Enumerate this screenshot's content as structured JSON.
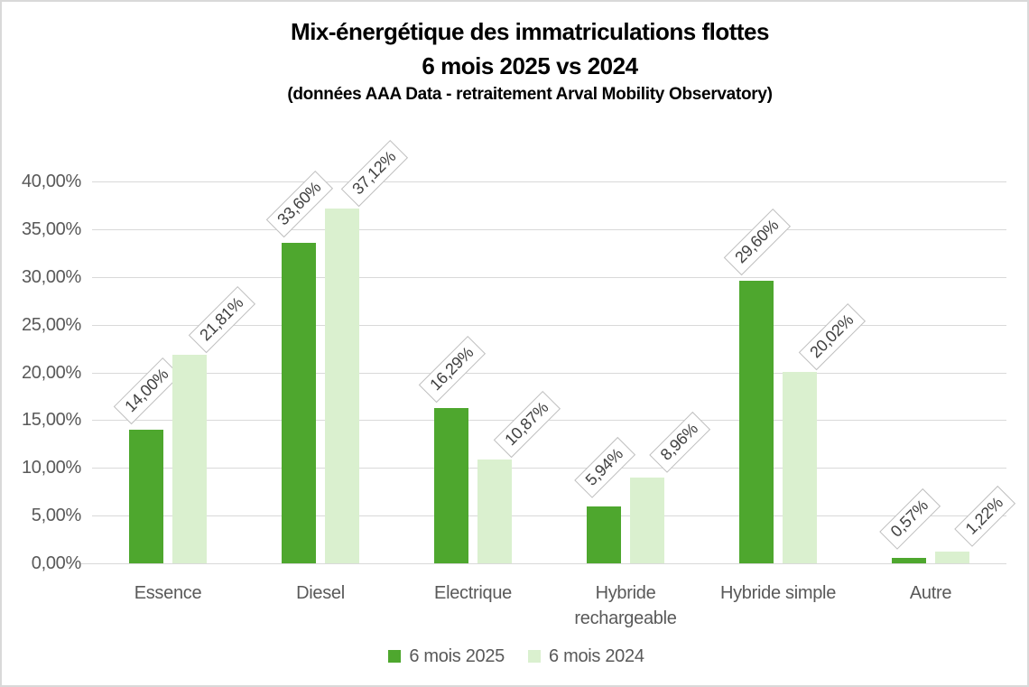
{
  "title": {
    "line1": "Mix-énergétique des immatriculations flottes",
    "line2": "6 mois 2025 vs 2024",
    "subtitle": "(données AAA Data - retraitement Arval Mobility Observatory)"
  },
  "chart_data": {
    "type": "bar",
    "title": "Mix-énergétique des immatriculations flottes 6 mois 2025 vs 2024",
    "subtitle": "(données AAA Data - retraitement Arval Mobility Observatory)",
    "categories": [
      "Essence",
      "Diesel",
      "Electrique",
      "Hybride rechargeable",
      "Hybride simple",
      "Autre"
    ],
    "series": [
      {
        "name": "6 mois 2025",
        "color": "#4EA72E",
        "values": [
          14.0,
          33.6,
          16.29,
          5.94,
          29.6,
          0.57
        ],
        "value_labels": [
          "14,00%",
          "33,60%",
          "16,29%",
          "5,94%",
          "29,60%",
          "0,57%"
        ]
      },
      {
        "name": "6 mois 2024",
        "color": "#DAF0CF",
        "values": [
          21.81,
          37.12,
          10.87,
          8.96,
          20.02,
          1.22
        ],
        "value_labels": [
          "21,81%",
          "37,12%",
          "10,87%",
          "8,96%",
          "20,02%",
          "1,22%"
        ]
      }
    ],
    "y_axis": {
      "min": 0,
      "max": 40,
      "step": 5,
      "tick_labels": [
        "0,00%",
        "5,00%",
        "10,00%",
        "15,00%",
        "20,00%",
        "25,00%",
        "30,00%",
        "35,00%",
        "40,00%"
      ]
    },
    "grid": true,
    "legend_position": "bottom",
    "data_label_rotation_deg": 45,
    "data_label_style": "boxed"
  },
  "colors": {
    "series_2025": "#4EA72E",
    "series_2024": "#DAF0CF",
    "gridline": "#D9D9D9",
    "axis_text": "#595959",
    "data_label_text": "#404040",
    "data_label_border": "#BFBFBF",
    "title_text": "#000000",
    "chart_border": "#D9D9D9",
    "background": "#FFFFFF"
  }
}
